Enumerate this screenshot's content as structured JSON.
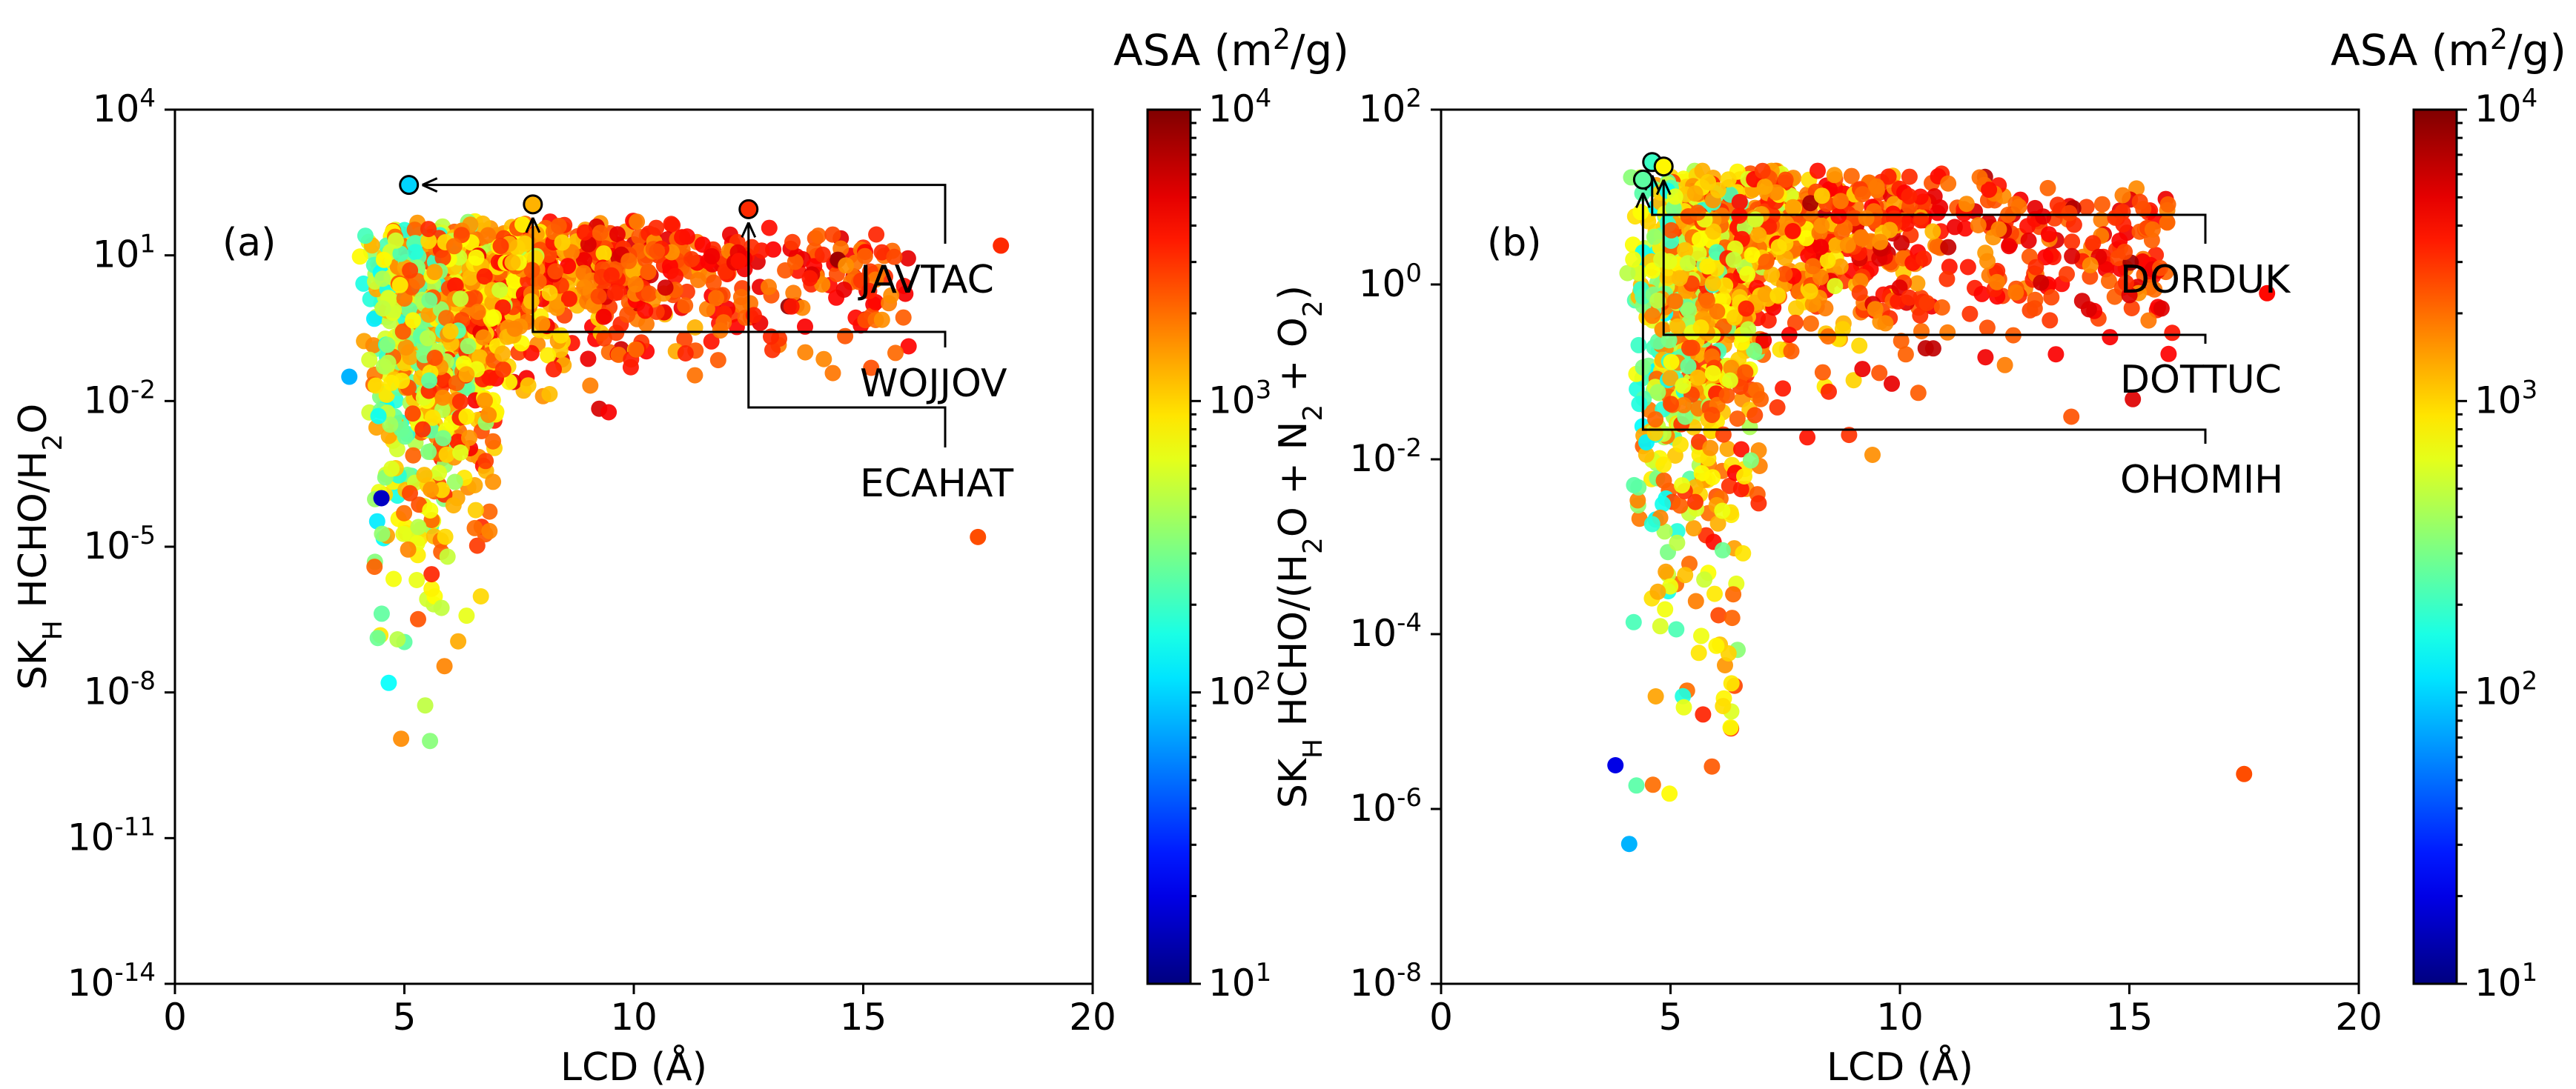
{
  "chart_data": [
    {
      "type": "scatter",
      "panel_label": "(a)",
      "xlabel": "LCD (Å)",
      "ylabel": "SK_H HCHO/H2O",
      "ylabel_parts": {
        "main": "SK",
        "sub": "H",
        "rest": " HCHO/H",
        "sub2": "2",
        "tail": "O"
      },
      "xlim": [
        0,
        20
      ],
      "ylim_log10": [
        -14,
        4
      ],
      "x_ticks": [
        0,
        5,
        10,
        15,
        20
      ],
      "y_ticks_exp": [
        -14,
        -11,
        -8,
        -5,
        -2,
        1,
        4
      ],
      "colorbar": {
        "title": "ASA (m²/g)",
        "title_base": "ASA (m",
        "title_sup": "2",
        "title_end": "/g)",
        "scale": "log",
        "range_log10": [
          1,
          4
        ],
        "tick_exp": [
          1,
          2,
          3,
          4
        ]
      },
      "annotations": [
        {
          "label": "JAVTAC",
          "x": 5.1,
          "y_log10": 2.45,
          "asa_log10": 2.0
        },
        {
          "label": "WOJJOV",
          "x": 7.8,
          "y_log10": 2.05,
          "asa_log10": 3.1
        },
        {
          "label": "ECAHAT",
          "x": 12.5,
          "y_log10": 1.95,
          "asa_log10": 3.5
        }
      ],
      "cluster_seed": 7
    },
    {
      "type": "scatter",
      "panel_label": "(b)",
      "xlabel": "LCD (Å)",
      "ylabel": "SK_H HCHO/(H2O + N2 + O2)",
      "ylabel_parts": {
        "main": "SK",
        "sub": "H",
        "a": " HCHO/(H",
        "s1": "2",
        "b": "O + N",
        "s2": "2",
        "c": " + O",
        "s3": "2",
        "d": ")"
      },
      "xlim": [
        0,
        20
      ],
      "ylim_log10": [
        -8,
        2
      ],
      "x_ticks": [
        0,
        5,
        10,
        15,
        20
      ],
      "y_ticks_exp": [
        -8,
        -6,
        -4,
        -2,
        0,
        2
      ],
      "colorbar": {
        "title": "ASA (m²/g)",
        "title_base": "ASA (m",
        "title_sup": "2",
        "title_end": "/g)",
        "scale": "log",
        "range_log10": [
          1,
          4
        ],
        "tick_exp": [
          1,
          2,
          3,
          4
        ]
      },
      "annotations": [
        {
          "label": "DORDUK",
          "x": 4.6,
          "y_log10": 1.4,
          "asa_log10": 2.3
        },
        {
          "label": "DOTTUC",
          "x": 4.85,
          "y_log10": 1.35,
          "asa_log10": 2.9
        },
        {
          "label": "OHOMIH",
          "x": 4.4,
          "y_log10": 1.2,
          "asa_log10": 2.4
        }
      ],
      "cluster_seed": 13
    }
  ]
}
